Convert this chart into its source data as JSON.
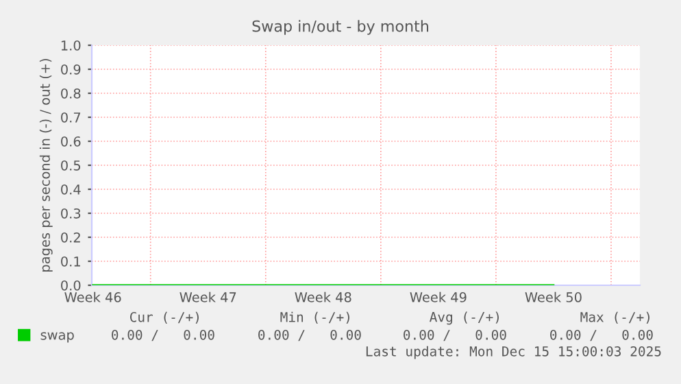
{
  "chart_data": {
    "type": "line",
    "title": "Swap in/out - by month",
    "ylabel": "pages per second in (-) / out (+)",
    "categories": [
      "Week 46",
      "Week 47",
      "Week 48",
      "Week 49",
      "Week 50"
    ],
    "series": [
      {
        "name": "swap",
        "color": "#00cc00",
        "values": [
          0,
          0,
          0,
          0,
          0
        ]
      }
    ],
    "ylim": [
      0,
      1.0
    ],
    "yticks": [
      {
        "value": 0,
        "label": "0.0"
      },
      {
        "value": 0.1,
        "label": "0.1"
      },
      {
        "value": 0.2,
        "label": "0.2"
      },
      {
        "value": 0.3,
        "label": "0.3"
      },
      {
        "value": 0.4,
        "label": "0.4"
      },
      {
        "value": 0.5,
        "label": "0.5"
      },
      {
        "value": 0.6,
        "label": "0.6"
      },
      {
        "value": 0.7,
        "label": "0.7"
      },
      {
        "value": 0.8,
        "label": "0.8"
      },
      {
        "value": 0.9,
        "label": "0.9"
      },
      {
        "value": 1.0,
        "label": "1.0"
      }
    ],
    "grid": true,
    "legend": "bottom left",
    "marker": "none",
    "line_style": "solid",
    "annotations": [
      "Cur (-/+)",
      "Min (-/+)",
      "Avg (-/+)",
      "Max (-/+)",
      "0.00 /   0.00",
      "0.00 /   0.00",
      "0.00 /   0.00",
      "0.00 /   0.00",
      "Last update: Mon Dec 15 15:00:03 2025"
    ]
  }
}
